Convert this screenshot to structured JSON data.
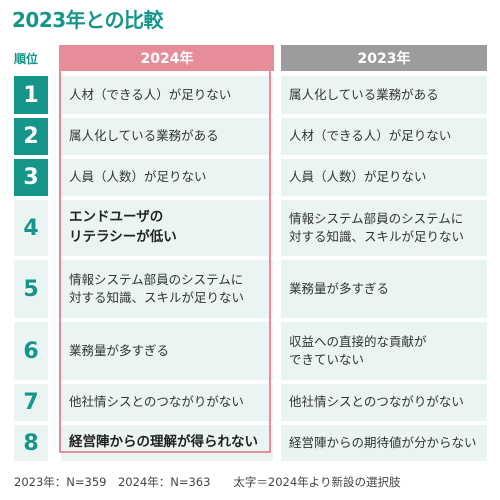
{
  "title": "2023年との比較",
  "headers": {
    "rank": "順位",
    "year2024": "2024年",
    "year2023": "2023年"
  },
  "chart_data": {
    "type": "table",
    "columns": [
      "順位",
      "2024年",
      "2023年"
    ],
    "rows": [
      {
        "rank": "1",
        "y2024": "人材（できる人）が足りない",
        "y2024_bold": false,
        "y2023": "属人化している業務がある"
      },
      {
        "rank": "2",
        "y2024": "属人化している業務がある",
        "y2024_bold": false,
        "y2023": "人材（できる人）が足りない"
      },
      {
        "rank": "3",
        "y2024": "人員（人数）が足りない",
        "y2024_bold": false,
        "y2023": "人員（人数）が足りない"
      },
      {
        "rank": "4",
        "y2024": "エンドユーザの\nリテラシーが低い",
        "y2024_bold": true,
        "y2023": "情報システム部員のシステムに\n対する知識、スキルが足りない"
      },
      {
        "rank": "5",
        "y2024": "情報システム部員のシステムに\n対する知識、スキルが足りない",
        "y2024_bold": false,
        "y2023": "業務量が多すぎる"
      },
      {
        "rank": "6",
        "y2024": "業務量が多すぎる",
        "y2024_bold": false,
        "y2023": "収益への直接的な貢献が\nできていない"
      },
      {
        "rank": "7",
        "y2024": "他社情シスとのつながりがない",
        "y2024_bold": false,
        "y2023": "他社情シスとのつながりがない"
      },
      {
        "rank": "8",
        "y2024": "経営陣からの理解が得られない",
        "y2024_bold": true,
        "y2023": "経営陣からの期待値が分からない"
      }
    ]
  },
  "footnote": "2023年：N=359　2024年：N=363　　太字＝2024年より新設の選択肢",
  "colors": {
    "teal": "#16958a",
    "pink": "#e78c99",
    "gray": "#9c9c9c",
    "cell_bg": "#eaf5f3"
  }
}
